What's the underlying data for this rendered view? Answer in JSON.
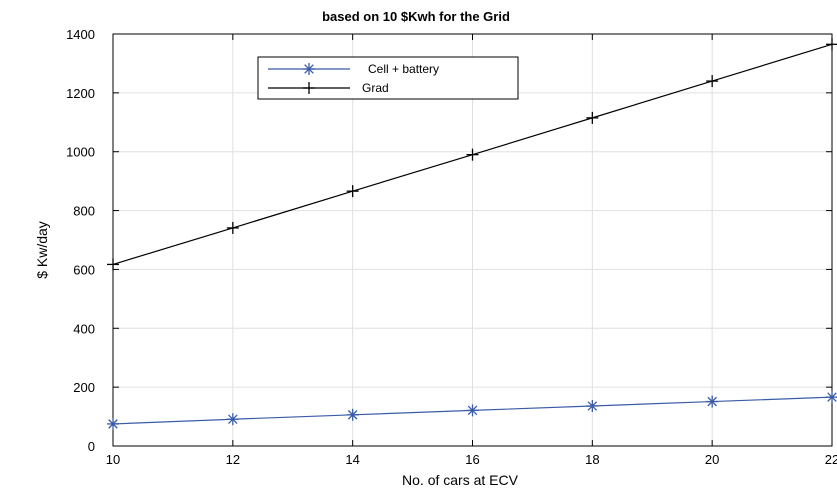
{
  "chart_data": {
    "type": "line",
    "title": "based on 10 $Kwh for the Grid",
    "xlabel": "No. of cars at ECV",
    "ylabel": "$ Kw/day",
    "xlim": [
      10,
      22
    ],
    "ylim": [
      0,
      1400
    ],
    "xticks": [
      "10",
      "12",
      "14",
      "16",
      "18",
      "20",
      "22"
    ],
    "yticks": [
      "0",
      "200",
      "400",
      "600",
      "800",
      "1000",
      "1200",
      "1400"
    ],
    "grid": true,
    "legend_position": "top-center",
    "x": [
      10,
      12,
      14,
      16,
      18,
      20,
      22
    ],
    "series": [
      {
        "name": "Cell + battery",
        "color": "#3a5ba8",
        "marker": "asterisk",
        "values": [
          75,
          91,
          106,
          121,
          136,
          151,
          166
        ]
      },
      {
        "name": "Grad",
        "color": "#000000",
        "marker": "plus",
        "values": [
          617,
          741,
          866,
          990,
          1115,
          1240,
          1365
        ]
      }
    ]
  }
}
